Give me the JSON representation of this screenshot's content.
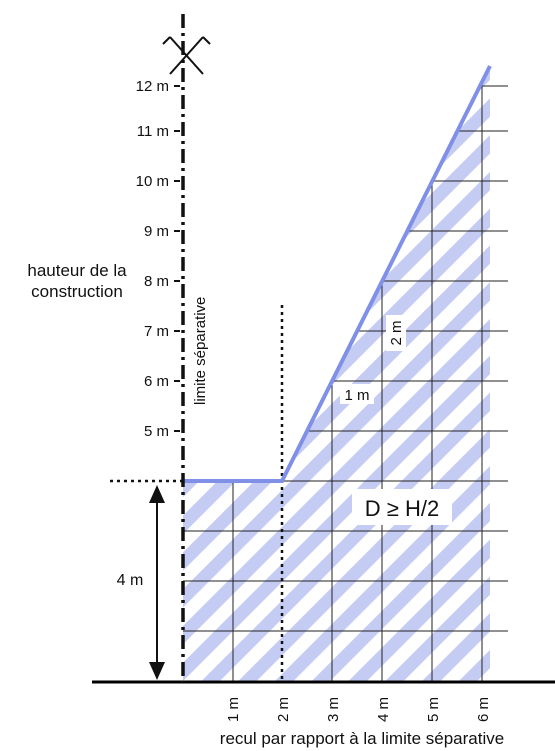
{
  "y_axis": {
    "tick_labels": [
      "5 m",
      "6 m",
      "7 m",
      "8 m",
      "9 m",
      "10 m",
      "11 m",
      "12 m"
    ],
    "caption_line1": "hauteur de la",
    "caption_line2": "construction"
  },
  "x_axis": {
    "tick_labels": [
      "1 m",
      "2 m",
      "3 m",
      "4 m",
      "5 m",
      "6 m"
    ],
    "caption": "recul par rapport à la limite séparative"
  },
  "limit_label": "limite séparative",
  "height_marker": "4 m",
  "rule": "D ≥ H/2",
  "slope_labels": {
    "horizontal": "1 m",
    "vertical": "2 m"
  },
  "colors": {
    "hatch": "#c5ccf4",
    "envelope": "#8090e6",
    "grid": "#222222",
    "ground": "#000000"
  },
  "icons": {
    "limit_top": "x-cross-icon"
  }
}
